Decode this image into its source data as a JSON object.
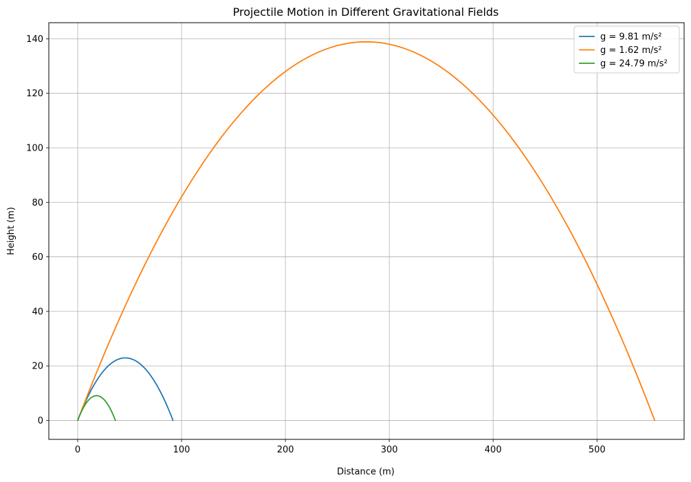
{
  "chart_data": {
    "type": "line",
    "title": "Projectile Motion in Different Gravitational Fields",
    "xlabel": "Distance (m)",
    "ylabel": "Height (m)",
    "xlim": [
      -27.8,
      583.9
    ],
    "ylim": [
      -6.95,
      145.9
    ],
    "xticks": [
      0,
      100,
      200,
      300,
      400,
      500
    ],
    "yticks": [
      0,
      20,
      40,
      60,
      80,
      100,
      120,
      140
    ],
    "grid": true,
    "legend_position": "top-right",
    "series": [
      {
        "name": "g = 9.81 m/s²",
        "color": "#1f77b4",
        "range": 91.74,
        "apex_height": 22.94,
        "points": [
          [
            0,
            0
          ],
          [
            4.59,
            4.36
          ],
          [
            9.17,
            8.26
          ],
          [
            13.76,
            11.7
          ],
          [
            18.35,
            14.68
          ],
          [
            22.94,
            17.2
          ],
          [
            27.52,
            19.27
          ],
          [
            32.11,
            20.87
          ],
          [
            36.7,
            22.02
          ],
          [
            41.28,
            22.71
          ],
          [
            45.87,
            22.94
          ],
          [
            50.46,
            22.71
          ],
          [
            55.04,
            22.02
          ],
          [
            59.63,
            20.87
          ],
          [
            64.22,
            19.27
          ],
          [
            68.81,
            17.2
          ],
          [
            73.39,
            14.68
          ],
          [
            77.98,
            11.7
          ],
          [
            82.57,
            8.26
          ],
          [
            87.15,
            4.36
          ],
          [
            91.74,
            0
          ]
        ]
      },
      {
        "name": "g = 1.62 m/s²",
        "color": "#ff7f0e",
        "range": 555.56,
        "apex_height": 138.89,
        "points": [
          [
            0,
            0
          ],
          [
            27.78,
            26.39
          ],
          [
            55.56,
            50.0
          ],
          [
            83.33,
            70.83
          ],
          [
            111.11,
            88.89
          ],
          [
            138.89,
            104.17
          ],
          [
            166.67,
            116.67
          ],
          [
            194.44,
            126.39
          ],
          [
            222.22,
            133.33
          ],
          [
            250.0,
            137.5
          ],
          [
            277.78,
            138.89
          ],
          [
            305.56,
            137.5
          ],
          [
            333.33,
            133.33
          ],
          [
            361.11,
            126.39
          ],
          [
            388.89,
            116.67
          ],
          [
            416.67,
            104.17
          ],
          [
            444.44,
            88.89
          ],
          [
            472.22,
            70.83
          ],
          [
            500.0,
            50.0
          ],
          [
            527.78,
            26.39
          ],
          [
            555.56,
            0
          ]
        ]
      },
      {
        "name": "g = 24.79 m/s²",
        "color": "#2ca02c",
        "range": 36.31,
        "apex_height": 9.08,
        "points": [
          [
            0,
            0
          ],
          [
            1.82,
            1.72
          ],
          [
            3.63,
            3.27
          ],
          [
            5.45,
            4.63
          ],
          [
            7.26,
            5.81
          ],
          [
            9.08,
            6.81
          ],
          [
            10.89,
            7.63
          ],
          [
            12.71,
            8.26
          ],
          [
            14.52,
            8.71
          ],
          [
            16.34,
            8.99
          ],
          [
            18.16,
            9.08
          ],
          [
            19.97,
            8.99
          ],
          [
            21.79,
            8.71
          ],
          [
            23.6,
            8.26
          ],
          [
            25.42,
            7.63
          ],
          [
            27.23,
            6.81
          ],
          [
            29.05,
            5.81
          ],
          [
            30.86,
            4.63
          ],
          [
            32.68,
            3.27
          ],
          [
            34.49,
            1.72
          ],
          [
            36.31,
            0
          ]
        ]
      }
    ]
  }
}
